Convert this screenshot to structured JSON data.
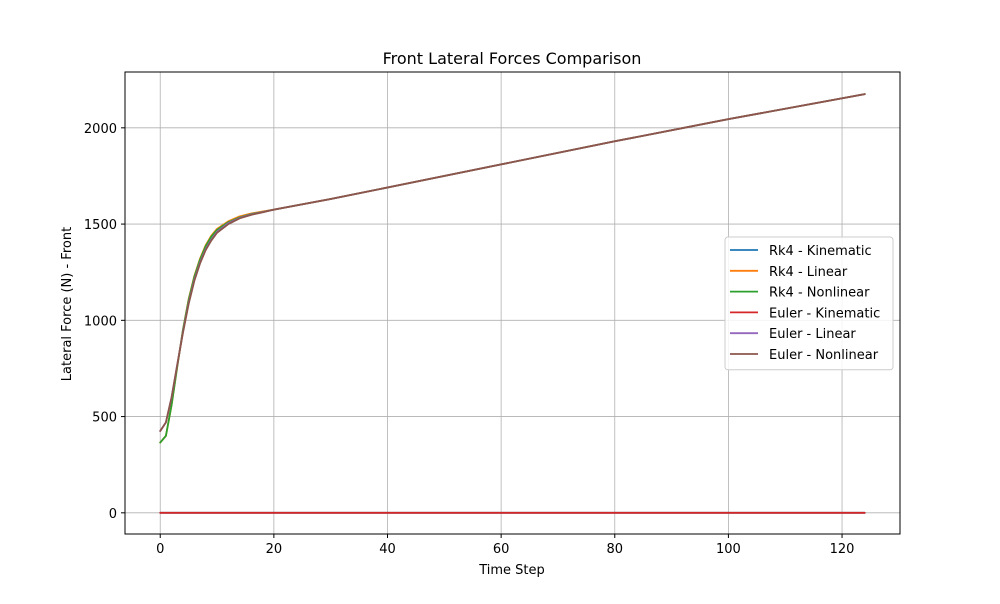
{
  "chart_data": {
    "type": "line",
    "title": "Front Lateral Forces Comparison",
    "xlabel": "Time Step",
    "ylabel": "Lateral Force (N) - Front",
    "xlim": [
      -6.2,
      130.2
    ],
    "ylim": [
      -110,
      2290
    ],
    "xticks": [
      0,
      20,
      40,
      60,
      80,
      100,
      120
    ],
    "yticks": [
      0,
      500,
      1000,
      1500,
      2000
    ],
    "grid": true,
    "legend_position": "center-right",
    "series": [
      {
        "name": "Rk4 - Kinematic",
        "color": "#1f77b4",
        "x": [
          0,
          124
        ],
        "y": [
          0,
          0
        ]
      },
      {
        "name": "Rk4 - Linear",
        "color": "#ff7f0e",
        "x": [
          0,
          1,
          2,
          3,
          4,
          5,
          6,
          7,
          8,
          9,
          10,
          12,
          14,
          16,
          18,
          20,
          30,
          40,
          60,
          80,
          100,
          124
        ],
        "y": [
          365,
          400,
          560,
          760,
          950,
          1110,
          1230,
          1320,
          1390,
          1440,
          1475,
          1515,
          1540,
          1555,
          1565,
          1575,
          1630,
          1690,
          1810,
          1930,
          2045,
          2175
        ]
      },
      {
        "name": "Rk4 - Nonlinear",
        "color": "#2ca02c",
        "x": [
          0,
          1,
          2,
          3,
          4,
          5,
          6,
          7,
          8,
          9,
          10,
          12,
          14,
          16,
          18,
          20,
          30,
          40,
          60,
          80,
          100,
          124
        ],
        "y": [
          365,
          400,
          560,
          760,
          950,
          1105,
          1225,
          1315,
          1385,
          1435,
          1470,
          1510,
          1535,
          1552,
          1563,
          1575,
          1630,
          1690,
          1810,
          1930,
          2045,
          2175
        ]
      },
      {
        "name": "Euler - Kinematic",
        "color": "#d62728",
        "x": [
          0,
          124
        ],
        "y": [
          0,
          0
        ]
      },
      {
        "name": "Euler - Linear",
        "color": "#9467bd",
        "x": [
          0,
          1,
          2,
          3,
          4,
          5,
          6,
          7,
          8,
          9,
          10,
          12,
          14,
          16,
          18,
          20,
          30,
          40,
          60,
          80,
          100,
          124
        ],
        "y": [
          425,
          470,
          600,
          770,
          940,
          1090,
          1210,
          1300,
          1370,
          1420,
          1460,
          1505,
          1532,
          1550,
          1562,
          1575,
          1630,
          1690,
          1810,
          1930,
          2045,
          2175
        ]
      },
      {
        "name": "Euler - Nonlinear",
        "color": "#8c564b",
        "x": [
          0,
          1,
          2,
          3,
          4,
          5,
          6,
          7,
          8,
          9,
          10,
          12,
          14,
          16,
          18,
          20,
          30,
          40,
          60,
          80,
          100,
          124
        ],
        "y": [
          425,
          470,
          600,
          770,
          935,
          1085,
          1205,
          1295,
          1365,
          1415,
          1455,
          1500,
          1530,
          1548,
          1561,
          1575,
          1630,
          1690,
          1810,
          1930,
          2045,
          2175
        ]
      }
    ]
  }
}
